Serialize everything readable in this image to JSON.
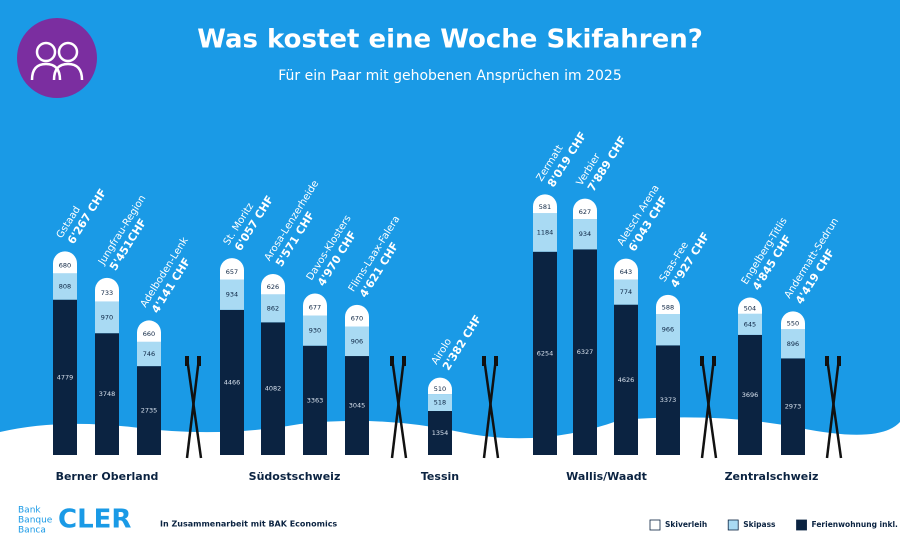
{
  "chart_data": {
    "type": "bar",
    "stacked": true,
    "title": "Was kostet eine Woche Skifahren?",
    "subtitle": "Für ein Paar mit gehobenen Ansprüchen im 2025",
    "groups": [
      {
        "name": "Berner Oberland",
        "categories": [
          "Gstaad",
          "Jungfrau-Region",
          "Adelboden-Lenk"
        ]
      },
      {
        "name": "Südostschweiz",
        "categories": [
          "St. Moritz",
          "Arosa-Lenzerheide",
          "Davos-Klosters",
          "Flims-Laax-Falera"
        ]
      },
      {
        "name": "Tessin",
        "categories": [
          "Airolo"
        ]
      },
      {
        "name": "Wallis/Waadt",
        "categories": [
          "Zermatt",
          "Verbier",
          "Aletsch Arena",
          "Saas-Fee"
        ]
      },
      {
        "name": "Zentralschweiz",
        "categories": [
          "Engelberg-Titlis",
          "Andermatt-Sedrun"
        ]
      }
    ],
    "total_labels": [
      "6'267 CHF",
      "5'451CHF",
      "4'141 CHF",
      "6'057 CHF",
      "5'571 CHF",
      "4'970 CHF",
      "4'621 CHF",
      "2'382 CHF",
      "8'019 CHF",
      "7'889 CHF",
      "6'043 CHF",
      "4'927 CHF",
      "4'845 CHF",
      "4'419 CHF"
    ],
    "series": [
      {
        "name": "Skiverleih",
        "color": "#ffffff",
        "values": [
          680,
          733,
          660,
          657,
          626,
          677,
          670,
          510,
          581,
          627,
          643,
          588,
          504,
          550
        ]
      },
      {
        "name": "Skipass",
        "color": "#a9daf3",
        "values": [
          808,
          970,
          746,
          934,
          862,
          930,
          906,
          518,
          1184,
          934,
          774,
          966,
          645,
          896
        ]
      },
      {
        "name": "Ferienwohnung inkl. Kurtaxe",
        "color": "#0b2341",
        "values": [
          4779,
          3748,
          2735,
          4466,
          4082,
          3363,
          3045,
          1354,
          6254,
          6327,
          4626,
          3373,
          3696,
          2973
        ]
      }
    ],
    "legend": "bottom-right"
  },
  "footer": {
    "bank": [
      "Bank",
      "Banque",
      "Banca"
    ],
    "brand": "CLER",
    "note": "In Zusammenarbeit mit BAK Economics"
  }
}
